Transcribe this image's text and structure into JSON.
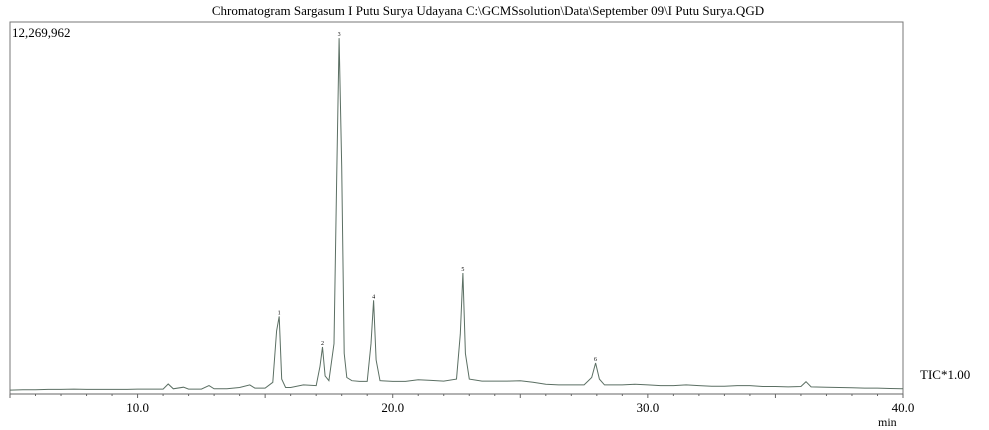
{
  "chart_data": {
    "type": "line",
    "title": "Chromatogram Sargasum I Putu Surya Udayana C:\\GCMSsolution\\Data\\September 09\\I Putu Surya.QGD",
    "y_max_label": "12,269,962",
    "trace_label": "TIC*1.00",
    "xlabel": "min",
    "ylabel": "",
    "xlim": [
      5.0,
      40.0
    ],
    "ylim": [
      0,
      12269962
    ],
    "x_ticks": [
      10.0,
      20.0,
      30.0,
      40.0
    ],
    "x_tick_labels": [
      "10.0",
      "20.0",
      "30.0",
      "40.0"
    ],
    "grid": false,
    "series": [
      {
        "x": [
          5.0,
          5.5,
          6.0,
          6.5,
          7.0,
          7.5,
          8.0,
          8.5,
          9.0,
          9.5,
          10.0,
          10.5,
          11.0,
          11.2,
          11.4,
          11.8,
          12.0,
          12.5,
          12.8,
          13.0,
          13.5,
          14.0,
          14.4,
          14.6,
          15.0,
          15.3,
          15.45,
          15.55,
          15.65,
          15.8,
          16.0,
          16.5,
          17.0,
          17.15,
          17.25,
          17.35,
          17.5,
          17.7,
          17.8,
          17.9,
          18.0,
          18.1,
          18.2,
          18.4,
          18.7,
          19.0,
          19.15,
          19.25,
          19.35,
          19.5,
          20.0,
          20.5,
          21.0,
          21.5,
          22.0,
          22.5,
          22.65,
          22.75,
          22.85,
          23.0,
          23.5,
          24.0,
          24.5,
          25.0,
          25.5,
          26.0,
          26.5,
          27.0,
          27.5,
          27.8,
          27.95,
          28.1,
          28.3,
          28.5,
          29.0,
          29.5,
          30.0,
          30.5,
          31.0,
          31.5,
          32.0,
          32.5,
          33.0,
          33.5,
          34.0,
          34.5,
          35.0,
          35.5,
          36.0,
          36.2,
          36.4,
          37.0,
          37.5,
          38.0,
          38.5,
          39.0,
          39.5,
          40.0
        ],
        "values": [
          0.06,
          0.07,
          0.07,
          0.08,
          0.08,
          0.09,
          0.08,
          0.08,
          0.08,
          0.08,
          0.09,
          0.09,
          0.09,
          0.25,
          0.1,
          0.15,
          0.09,
          0.09,
          0.2,
          0.1,
          0.1,
          0.14,
          0.22,
          0.12,
          0.12,
          0.3,
          1.9,
          2.35,
          0.4,
          0.14,
          0.14,
          0.22,
          0.2,
          0.8,
          1.4,
          0.5,
          0.35,
          1.5,
          6.5,
          11.0,
          7.0,
          1.2,
          0.45,
          0.35,
          0.33,
          0.33,
          1.5,
          2.85,
          1.0,
          0.35,
          0.33,
          0.33,
          0.38,
          0.36,
          0.34,
          0.4,
          1.8,
          3.7,
          1.2,
          0.4,
          0.34,
          0.34,
          0.34,
          0.35,
          0.3,
          0.24,
          0.22,
          0.22,
          0.22,
          0.45,
          0.9,
          0.4,
          0.22,
          0.22,
          0.22,
          0.24,
          0.22,
          0.2,
          0.2,
          0.22,
          0.2,
          0.18,
          0.18,
          0.2,
          0.2,
          0.17,
          0.17,
          0.16,
          0.17,
          0.32,
          0.16,
          0.15,
          0.14,
          0.13,
          0.12,
          0.12,
          0.11,
          0.1
        ]
      }
    ],
    "value_unit_note": "",
    "peaks": [
      {
        "rt": 15.55,
        "height": 2.35,
        "label": "1"
      },
      {
        "rt": 17.25,
        "height": 1.4,
        "label": "2"
      },
      {
        "rt": 17.9,
        "height": 11.0,
        "label": "3"
      },
      {
        "rt": 19.25,
        "height": 2.85,
        "label": "4"
      },
      {
        "rt": 22.75,
        "height": 3.7,
        "label": "5"
      },
      {
        "rt": 27.95,
        "height": 0.9,
        "label": "6"
      }
    ],
    "line_color": "#5b6f63"
  }
}
